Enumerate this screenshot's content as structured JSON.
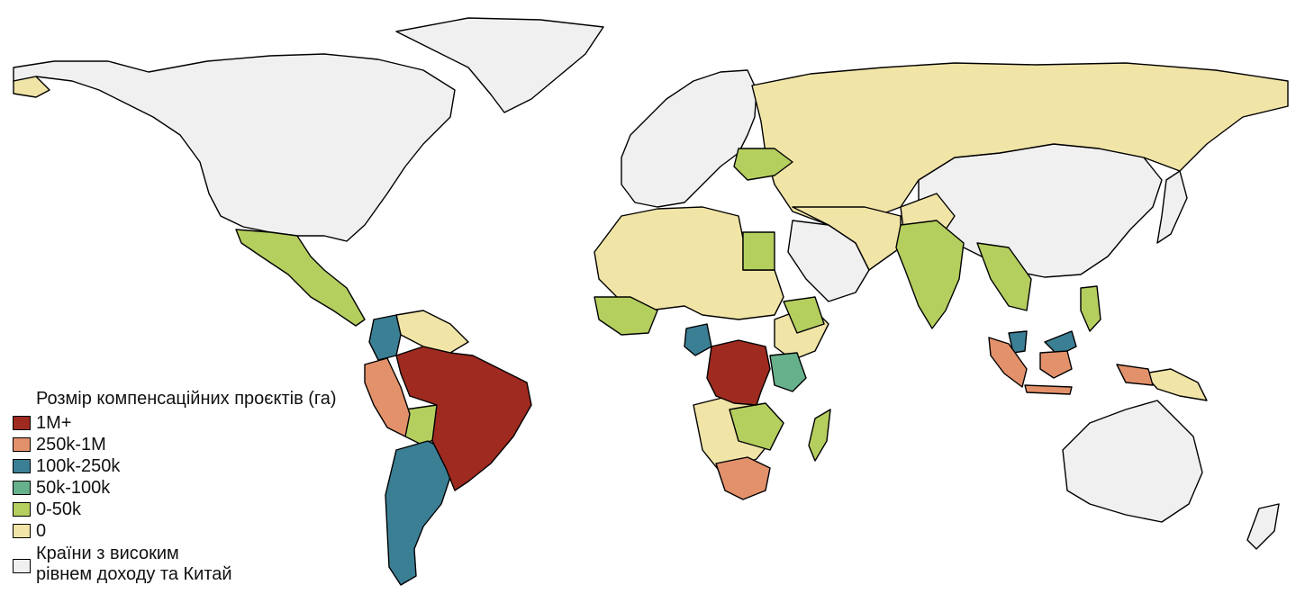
{
  "legend": {
    "title": "Розмір компенсаційних проєктів (га)",
    "items": [
      {
        "label": "1M+",
        "color": "#9e2a20"
      },
      {
        "label": "250k-1M",
        "color": "#e3916b"
      },
      {
        "label": "100k-250k",
        "color": "#3b7f95"
      },
      {
        "label": "50k-100k",
        "color": "#67b08c"
      },
      {
        "label": "0-50k",
        "color": "#b5cf5f"
      },
      {
        "label": "0",
        "color": "#f1e4a7"
      },
      {
        "label": "Країни з високим\nрівнем доходу та Китай",
        "color": "#f0f0f0"
      }
    ]
  },
  "map_data": {
    "categories": {
      "1M+": [
        "Бразилія",
        "ДР Конго"
      ],
      "250k-1M": [
        "Перу",
        "ПАР",
        "Індонезія"
      ],
      "100k-250k": [
        "Колумбія",
        "Аргентина",
        "Камерун"
      ],
      "50k-100k": [
        "Танзанія"
      ]
    }
  }
}
